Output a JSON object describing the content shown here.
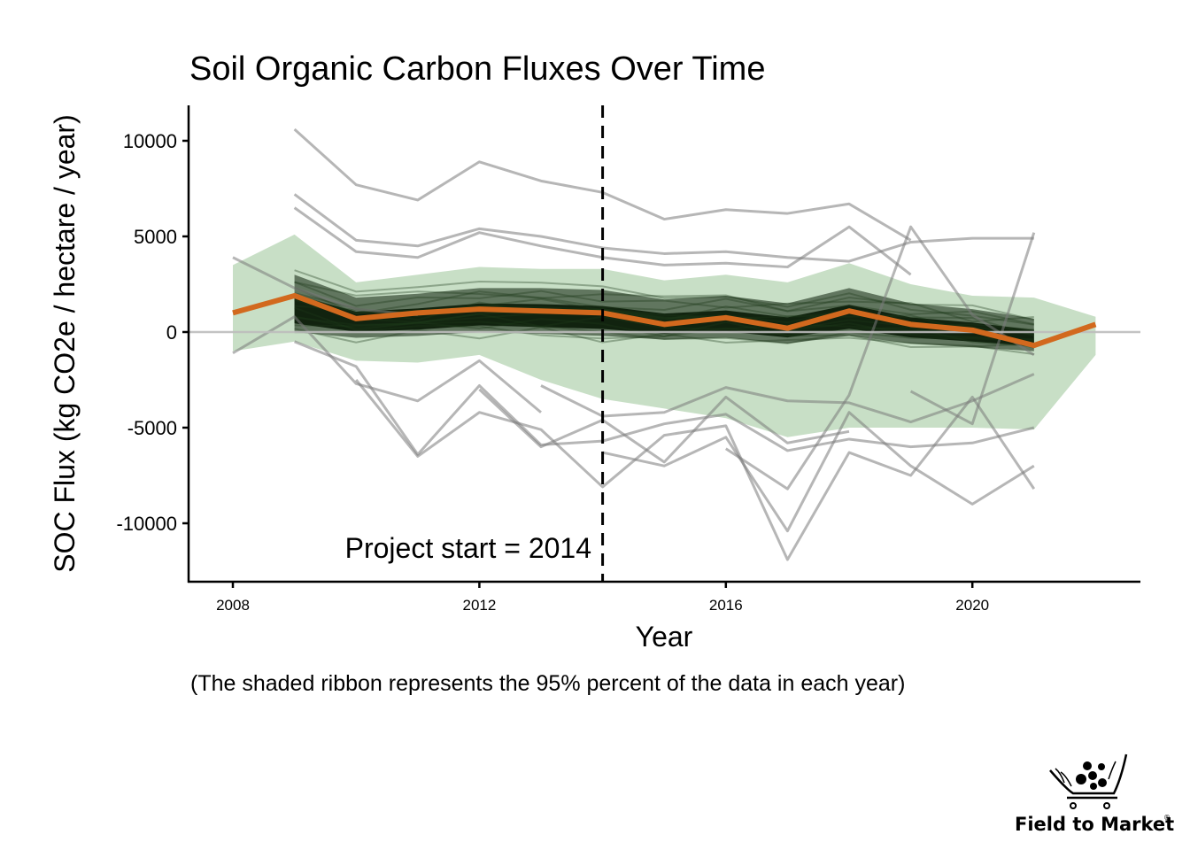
{
  "chart_data": {
    "type": "line",
    "title": "Soil Organic Carbon Fluxes Over Time",
    "xlabel": "Year",
    "ylabel": "SOC Flux (kg CO2e / hectare / year)",
    "caption": "(The shaded ribbon represents the 95% percent of the data in each year)",
    "xlim": [
      2007.3,
      2022.6
    ],
    "ylim": [
      -12600,
      12000
    ],
    "x_ticks": [
      2008,
      2012,
      2016,
      2020
    ],
    "x_tick_labels": [
      "2008",
      "2012",
      "2016",
      "2020"
    ],
    "y_ticks": [
      10000,
      5000,
      0,
      -5000,
      -10000
    ],
    "y_tick_labels": [
      "10000",
      "5000",
      "0",
      "-5000",
      "-10000"
    ],
    "grid": false,
    "reference_hline": {
      "y": 0,
      "color": "#bdbdbd"
    },
    "project_start": {
      "x": 2014,
      "label": "Project start = 2014",
      "style": "dashed"
    },
    "colors": {
      "median": "#d2691e",
      "ribbon": "#c8dfc6",
      "field_lines": "#7a7a7a",
      "dense_band": "#0d1f0b",
      "axis": "#000000"
    },
    "years": [
      2008,
      2009,
      2010,
      2011,
      2012,
      2013,
      2014,
      2015,
      2016,
      2017,
      2018,
      2019,
      2020,
      2021,
      2022
    ],
    "series": [
      {
        "name": "median",
        "values": [
          1000,
          1900,
          700,
          1000,
          1200,
          1100,
          1000,
          400,
          750,
          200,
          1100,
          400,
          100,
          -700,
          400
        ]
      },
      {
        "name": "ribbon_upper_97.5",
        "values": [
          3500,
          5100,
          2600,
          3000,
          3400,
          3300,
          3300,
          2700,
          3000,
          2600,
          3600,
          2500,
          1900,
          1800,
          800
        ]
      },
      {
        "name": "ribbon_lower_2.5",
        "values": [
          -1000,
          -500,
          -1500,
          -1600,
          -1200,
          -2500,
          -3500,
          -4000,
          -4500,
          -5500,
          -5000,
          -5000,
          -5000,
          -5100,
          -1200
        ]
      },
      {
        "name": "dense_band_upper",
        "values": [
          null,
          3000,
          1800,
          2000,
          2300,
          2300,
          2200,
          1700,
          1900,
          1500,
          2300,
          1500,
          1200,
          700,
          null
        ]
      },
      {
        "name": "dense_band_lower",
        "values": [
          null,
          0,
          -300,
          -200,
          0,
          -100,
          -200,
          -400,
          -300,
          -600,
          -200,
          -600,
          -800,
          -1000,
          null
        ]
      }
    ],
    "individual_fields": [
      {
        "x": [
          2009,
          2010,
          2011,
          2012,
          2013,
          2014,
          2015,
          2016,
          2017,
          2018,
          2019
        ],
        "y": [
          10600,
          7700,
          6900,
          8900,
          7900,
          7300,
          5900,
          6400,
          6200,
          6700,
          4800
        ]
      },
      {
        "x": [
          2009,
          2010,
          2011,
          2012,
          2013,
          2014,
          2015,
          2016,
          2017,
          2018,
          2019,
          2020,
          2021
        ],
        "y": [
          7200,
          4800,
          4500,
          5400,
          5000,
          4400,
          4100,
          4200,
          3900,
          3700,
          4700,
          4900,
          4900
        ]
      },
      {
        "x": [
          2009,
          2010,
          2011,
          2012,
          2013,
          2014,
          2015,
          2016,
          2017,
          2018,
          2019
        ],
        "y": [
          6500,
          4200,
          3900,
          5200,
          4500,
          3900,
          3500,
          3600,
          3400,
          5500,
          3000
        ]
      },
      {
        "x": [
          2008,
          2009,
          2010,
          2011
        ],
        "y": [
          3900,
          2300,
          1200,
          900
        ]
      },
      {
        "x": [
          2008,
          2009,
          2010,
          2011,
          2012,
          2013
        ],
        "y": [
          -1100,
          800,
          -2700,
          -3600,
          -1500,
          -4200
        ]
      },
      {
        "x": [
          2009,
          2010,
          2011,
          2012,
          2013,
          2014,
          2015,
          2016,
          2017,
          2018,
          2019,
          2020,
          2021
        ],
        "y": [
          -500,
          -1800,
          -6400,
          -2800,
          -5900,
          -5700,
          -4800,
          -4300,
          -6200,
          -5600,
          -6000,
          -5800,
          -5000
        ]
      },
      {
        "x": [
          2010,
          2011,
          2012,
          2013,
          2014,
          2015,
          2016,
          2017,
          2018,
          2019,
          2020,
          2021
        ],
        "y": [
          -2500,
          -6500,
          -4200,
          -5100,
          -8100,
          -5400,
          -4900,
          -11900,
          -6300,
          -7500,
          -3400,
          -8200
        ]
      },
      {
        "x": [
          2014,
          2015,
          2016,
          2017,
          2018,
          2019,
          2020,
          2021
        ],
        "y": [
          -6300,
          -7000,
          -5500,
          -10400,
          -4200,
          -7000,
          -9000,
          -7000
        ]
      },
      {
        "x": [
          2016,
          2017,
          2018,
          2019,
          2020,
          2021
        ],
        "y": [
          -6100,
          -8200,
          -3300,
          5500,
          900,
          -1200
        ]
      },
      {
        "x": [
          2019,
          2020,
          2021
        ],
        "y": [
          -3100,
          -4800,
          5200
        ]
      },
      {
        "x": [
          2012,
          2013,
          2014,
          2015,
          2016,
          2017,
          2018
        ],
        "y": [
          -3000,
          -6000,
          -4600,
          -6800,
          -3400,
          -5800,
          -5200
        ]
      },
      {
        "x": [
          2013,
          2014,
          2015,
          2016,
          2017,
          2018,
          2019,
          2020,
          2021
        ],
        "y": [
          -2800,
          -4400,
          -4200,
          -2900,
          -3600,
          -3700,
          -4700,
          -3600,
          -2200
        ]
      }
    ]
  },
  "logo": {
    "text": "Field to Market",
    "trademark": "®"
  }
}
